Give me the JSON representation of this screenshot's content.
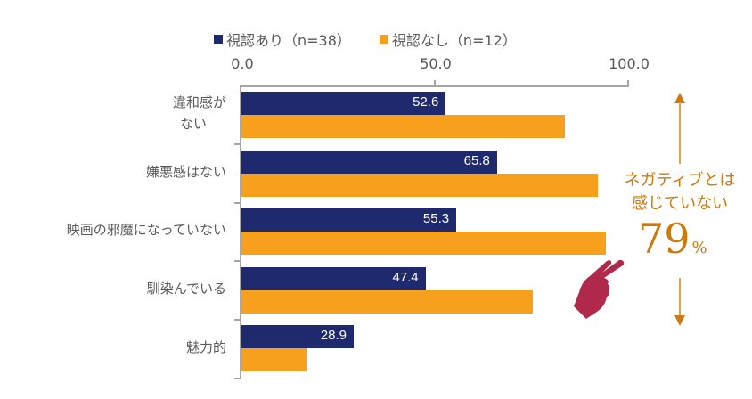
{
  "legend": [
    {
      "label": "視認あり（n=38）",
      "color": "#1f2a6e"
    },
    {
      "label": "視認なし（n=12）",
      "color": "#f7a01e"
    }
  ],
  "axis": {
    "ticks": [
      "0.0",
      "50.0",
      "100.0"
    ]
  },
  "categories": [
    {
      "label_line1": "違和感が",
      "label_line2": "ない",
      "navy": 52.6,
      "navy_label": "52.6",
      "orange": 83.3
    },
    {
      "label_line1": "嫌悪感はない",
      "navy": 65.8,
      "navy_label": "65.8",
      "orange": 91.7
    },
    {
      "label_line1": "映画の邪魔になっていない",
      "navy": 55.3,
      "navy_label": "55.3",
      "orange": 93.8
    },
    {
      "label_line1": "馴染んでいる",
      "navy": 47.4,
      "navy_label": "47.4",
      "orange": 75.0
    },
    {
      "label_line1": "魅力的",
      "navy": 28.9,
      "navy_label": "28.9",
      "orange": 16.7
    }
  ],
  "annotation": {
    "line1": "ネガティブとは",
    "line2": "感じていない",
    "value": "79",
    "unit": "%",
    "color": "#c97a10",
    "hand_color": "#b0284a",
    "icon": "pointing-hand-icon"
  },
  "chart_data": {
    "type": "bar",
    "orientation": "horizontal",
    "title": "",
    "xlabel": "",
    "ylabel": "",
    "xlim": [
      0,
      100
    ],
    "x_ticks": [
      "0.0",
      "50.0",
      "100.0"
    ],
    "axis_position": "top",
    "grid": false,
    "legend_position": "top",
    "categories": [
      "違和感がない",
      "嫌悪感はない",
      "映画の邪魔になっていない",
      "馴染んでいる",
      "魅力的"
    ],
    "series": [
      {
        "name": "視認あり（n=38）",
        "color": "#1f2a6e",
        "values": [
          52.6,
          65.8,
          55.3,
          47.4,
          28.9
        ],
        "data_labels": true
      },
      {
        "name": "視認なし（n=12）",
        "color": "#f7a01e",
        "values": [
          83.3,
          91.7,
          93.8,
          75.0,
          16.7
        ],
        "data_labels": false
      }
    ],
    "annotations": [
      {
        "text": "ネガティブとは感じていない 79%",
        "position": "right",
        "arrows": "up-down"
      }
    ]
  }
}
